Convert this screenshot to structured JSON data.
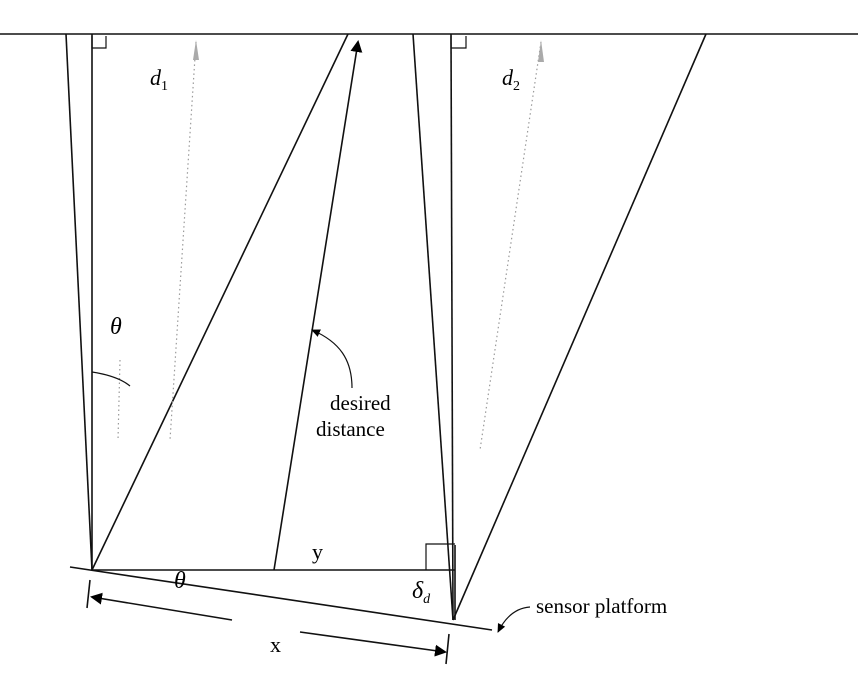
{
  "labels": {
    "d1": "d",
    "d1_sub": "1",
    "d2": "d",
    "d2_sub": "2",
    "theta_top": "θ",
    "theta_bottom": "θ",
    "desired_line1": "desired",
    "desired_line2": "distance",
    "y": "y",
    "x": "x",
    "delta": "δ",
    "delta_sub": "d",
    "sensor_platform": "sensor platform"
  }
}
